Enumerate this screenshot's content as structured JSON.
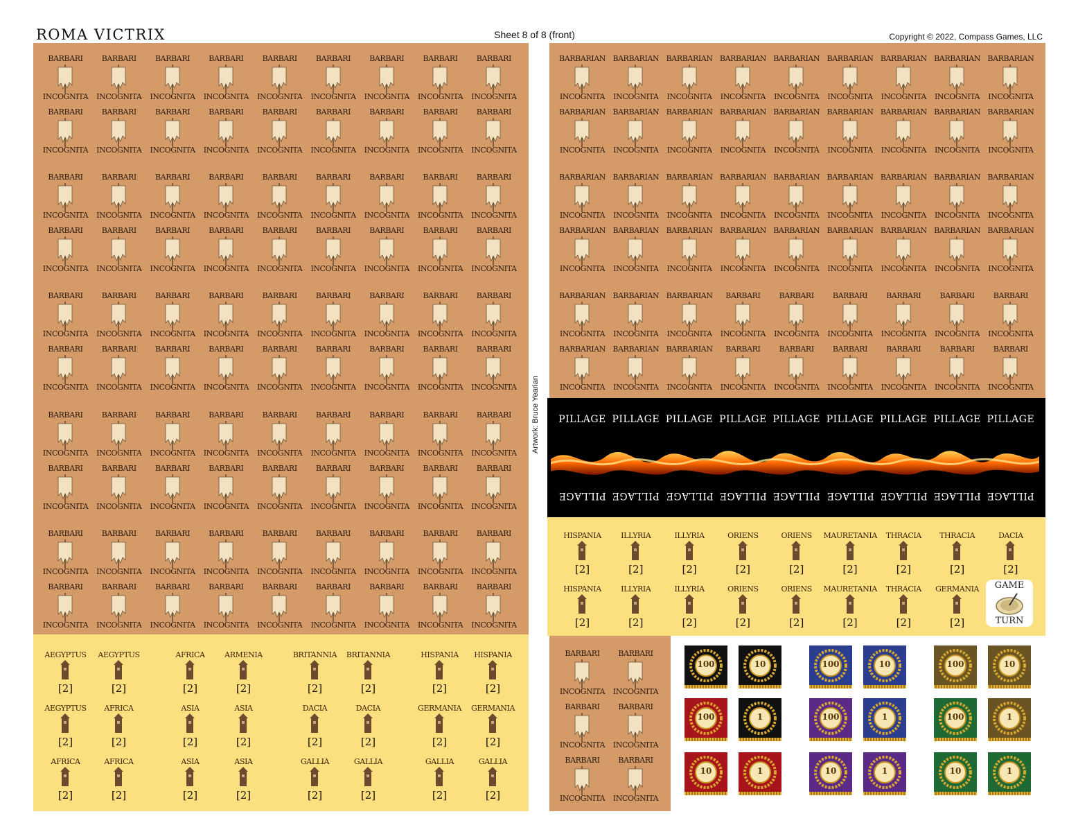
{
  "header": {
    "title": "ROMA VICTRIX",
    "sheet": "Sheet 8 of 8 (front)",
    "copyright": "Copyright © 2022, Compass Games, LLC",
    "artist": "Artwork: Bruce Yearian"
  },
  "colors": {
    "orange_panel": "#d49b68",
    "yellow_panel": "#fcdf7f",
    "pillage_panel": "#000000",
    "banner": "#f3e2c2",
    "tower": "#6b4a2e"
  },
  "left_barbari": {
    "rows": [
      {
        "top": "BARBARI",
        "bottom": "INCOGNITA",
        "count": 9
      },
      {
        "top": "BARBARI",
        "bottom": "INCOGNITA",
        "count": 9
      },
      {
        "top": "BARBARI",
        "bottom": "INCOGNITA",
        "count": 9
      },
      {
        "top": "BARBARI",
        "bottom": "INCOGNITA",
        "count": 9
      },
      {
        "top": "BARBARI",
        "bottom": "INCOGNITA",
        "count": 9
      },
      {
        "top": "BARBARI",
        "bottom": "INCOGNITA",
        "count": 9
      },
      {
        "top": "BARBARI",
        "bottom": "INCOGNITA",
        "count": 9
      },
      {
        "top": "BARBARI",
        "bottom": "INCOGNITA",
        "count": 9
      },
      {
        "top": "BARBARI",
        "bottom": "INCOGNITA",
        "count": 9
      },
      {
        "top": "BARBARI",
        "bottom": "INCOGNITA",
        "count": 9
      }
    ]
  },
  "right_barbarian": {
    "rows": [
      [
        "BARBARIAN",
        "BARBARIAN",
        "BARBARIAN",
        "BARBARIAN",
        "BARBARIAN",
        "BARBARIAN",
        "BARBARIAN",
        "BARBARIAN",
        "BARBARIAN"
      ],
      [
        "BARBARIAN",
        "BARBARIAN",
        "BARBARIAN",
        "BARBARIAN",
        "BARBARIAN",
        "BARBARIAN",
        "BARBARIAN",
        "BARBARIAN",
        "BARBARIAN"
      ],
      [
        "BARBARIAN",
        "BARBARIAN",
        "BARBARIAN",
        "BARBARIAN",
        "BARBARIAN",
        "BARBARIAN",
        "BARBARIAN",
        "BARBARIAN",
        "BARBARIAN"
      ],
      [
        "BARBARIAN",
        "BARBARIAN",
        "BARBARIAN",
        "BARBARIAN",
        "BARBARIAN",
        "BARBARIAN",
        "BARBARIAN",
        "BARBARIAN",
        "BARBARIAN"
      ],
      [
        "BARBARIAN",
        "BARBARIAN",
        "BARBARIAN",
        "BARBARI",
        "BARBARI",
        "BARBARI",
        "BARBARI",
        "BARBARI",
        "BARBARI"
      ],
      [
        "BARBARIAN",
        "BARBARIAN",
        "BARBARIAN",
        "BARBARI",
        "BARBARI",
        "BARBARI",
        "BARBARI",
        "BARBARI",
        "BARBARI"
      ]
    ],
    "bottom": "INCOGNITA"
  },
  "pillage": {
    "label": "PILLAGE",
    "count": 9
  },
  "right_provinces": {
    "rows": [
      [
        "HISPANIA",
        "ILLYRIA",
        "ILLYRIA",
        "ORIENS",
        "ORIENS",
        "MAURETANIA",
        "THRACIA",
        "THRACIA",
        "DACIA"
      ],
      [
        "HISPANIA",
        "ILLYRIA",
        "ILLYRIA",
        "ORIENS",
        "ORIENS",
        "MAURETANIA",
        "THRACIA",
        "GERMANIA"
      ]
    ],
    "strength": "[2]"
  },
  "game_turn": {
    "line1": "GAME",
    "line2": "TURN"
  },
  "left_provinces": {
    "rows": [
      [
        "AEGYPTUS",
        "AEGYPTUS",
        "",
        "AFRICA",
        "ARMENIA",
        "",
        "BRITANNIA",
        "BRITANNIA",
        "",
        "HISPANIA",
        "HISPANIA"
      ],
      [
        "AEGYPTUS",
        "AFRICA",
        "",
        "ASIA",
        "ASIA",
        "",
        "DACIA",
        "DACIA",
        "",
        "GERMANIA",
        "GERMANIA"
      ],
      [
        "AFRICA",
        "AFRICA",
        "",
        "ASIA",
        "ASIA",
        "",
        "GALLIA",
        "GALLIA",
        "",
        "GALLIA",
        "GALLIA"
      ]
    ],
    "strength": "[2]"
  },
  "small_barbari": {
    "rows": [
      {
        "top": "BARBARI",
        "bottom": "INCOGNITA",
        "count": 2
      },
      {
        "top": "BARBARI",
        "bottom": "INCOGNITA",
        "count": 2
      },
      {
        "top": "BARBARI",
        "bottom": "INCOGNITA",
        "count": 2
      }
    ]
  },
  "markers": {
    "rows": [
      [
        {
          "num": "100",
          "bg": "#111111"
        },
        {
          "num": "10",
          "bg": "#111111"
        },
        {
          "num": "100",
          "bg": "#2a3d8f"
        },
        {
          "num": "10",
          "bg": "#2a3d8f"
        },
        {
          "num": "100",
          "bg": "#6b5423"
        },
        {
          "num": "10",
          "bg": "#6b5423"
        }
      ],
      [
        {
          "num": "100",
          "bg": "#a8141c"
        },
        {
          "num": "1",
          "bg": "#111111"
        },
        {
          "num": "100",
          "bg": "#5b2a86"
        },
        {
          "num": "1",
          "bg": "#2a3d8f"
        },
        {
          "num": "100",
          "bg": "#1f6a34"
        },
        {
          "num": "1",
          "bg": "#6b5423"
        }
      ],
      [
        {
          "num": "10",
          "bg": "#a8141c"
        },
        {
          "num": "1",
          "bg": "#a8141c"
        },
        {
          "num": "10",
          "bg": "#5b2a86"
        },
        {
          "num": "1",
          "bg": "#5b2a86"
        },
        {
          "num": "10",
          "bg": "#1f6a34"
        },
        {
          "num": "1",
          "bg": "#1f6a34"
        }
      ]
    ]
  }
}
